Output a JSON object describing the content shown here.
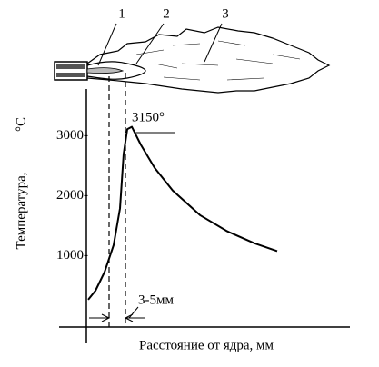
{
  "chart_data": {
    "type": "line",
    "flame_labels": [
      "1",
      "2",
      "3"
    ],
    "ylabel": "Температура,",
    "yunit": "°C",
    "xlabel": "Расстояние от ядра, мм",
    "peak_label": "3150°",
    "width_label": "3-5мм",
    "x": [
      0.2,
      1,
      2,
      3,
      3.7,
      4.1,
      4.5,
      5,
      6,
      7.5,
      9.5,
      12.5,
      15.5,
      18.5,
      21
    ],
    "values": [
      270,
      420,
      730,
      1180,
      1790,
      2700,
      3110,
      3150,
      2850,
      2470,
      2090,
      1680,
      1410,
      1210,
      1080
    ],
    "color": "#000000",
    "xlim": [
      0,
      29
    ],
    "ylim": [
      -200,
      3750
    ],
    "yticks": [
      {
        "value": 1000,
        "label": "1000-"
      },
      {
        "value": 2000,
        "label": "2000-"
      },
      {
        "value": 3000,
        "label": "3000-"
      }
    ]
  }
}
